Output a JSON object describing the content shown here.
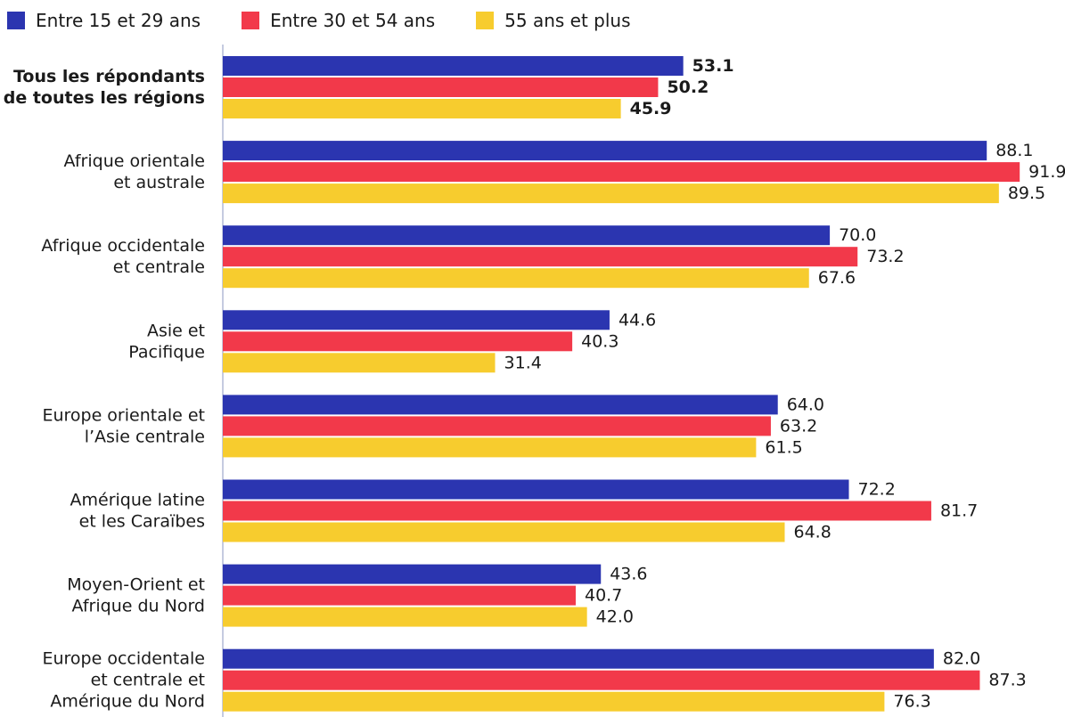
{
  "chart_data": {
    "type": "bar",
    "orientation": "horizontal",
    "title": "",
    "xlabel": "",
    "ylabel": "",
    "xlim": [
      0,
      100
    ],
    "grid": false,
    "legend_position": "top-left",
    "categories": [
      [
        "Tous les répondants",
        "de toutes les régions"
      ],
      [
        "Afrique orientale",
        "et australe"
      ],
      [
        "Afrique occidentale",
        "et centrale"
      ],
      [
        "Asie et",
        "Pacifique"
      ],
      [
        "Europe orientale et",
        "l’Asie centrale"
      ],
      [
        "Amérique latine",
        "et les Caraïbes"
      ],
      [
        "Moyen-Orient et",
        "Afrique du Nord"
      ],
      [
        "Europe occidentale",
        "et centrale et",
        "Amérique du Nord"
      ]
    ],
    "emphasized_categories": [
      0
    ],
    "series": [
      {
        "name": "Entre 15 et 29 ans",
        "color": "#2b35b0",
        "values": [
          53.1,
          88.1,
          70.0,
          44.6,
          64.0,
          72.2,
          43.6,
          82.0
        ],
        "labels": [
          "53.1",
          "88.1",
          "70.0",
          "44.6",
          "64.0",
          "72.2",
          "43.6",
          "82.0"
        ]
      },
      {
        "name": "Entre 30 et 54 ans",
        "color": "#f2394a",
        "values": [
          50.2,
          91.9,
          73.2,
          40.3,
          63.2,
          81.7,
          40.7,
          87.3
        ],
        "labels": [
          "50.2",
          "91.9",
          "73.2",
          "40.3",
          "63.2",
          "81.7",
          "40.7",
          "87.3"
        ]
      },
      {
        "name": "55 ans et plus",
        "color": "#f7cc2e",
        "values": [
          45.9,
          89.5,
          67.6,
          31.4,
          61.5,
          64.8,
          42.0,
          76.3
        ],
        "labels": [
          "45.9",
          "89.5",
          "67.6",
          "31.4",
          "61.5",
          "64.8",
          "42.0",
          "76.3"
        ]
      }
    ],
    "axis_color": "#c5cbe0"
  }
}
